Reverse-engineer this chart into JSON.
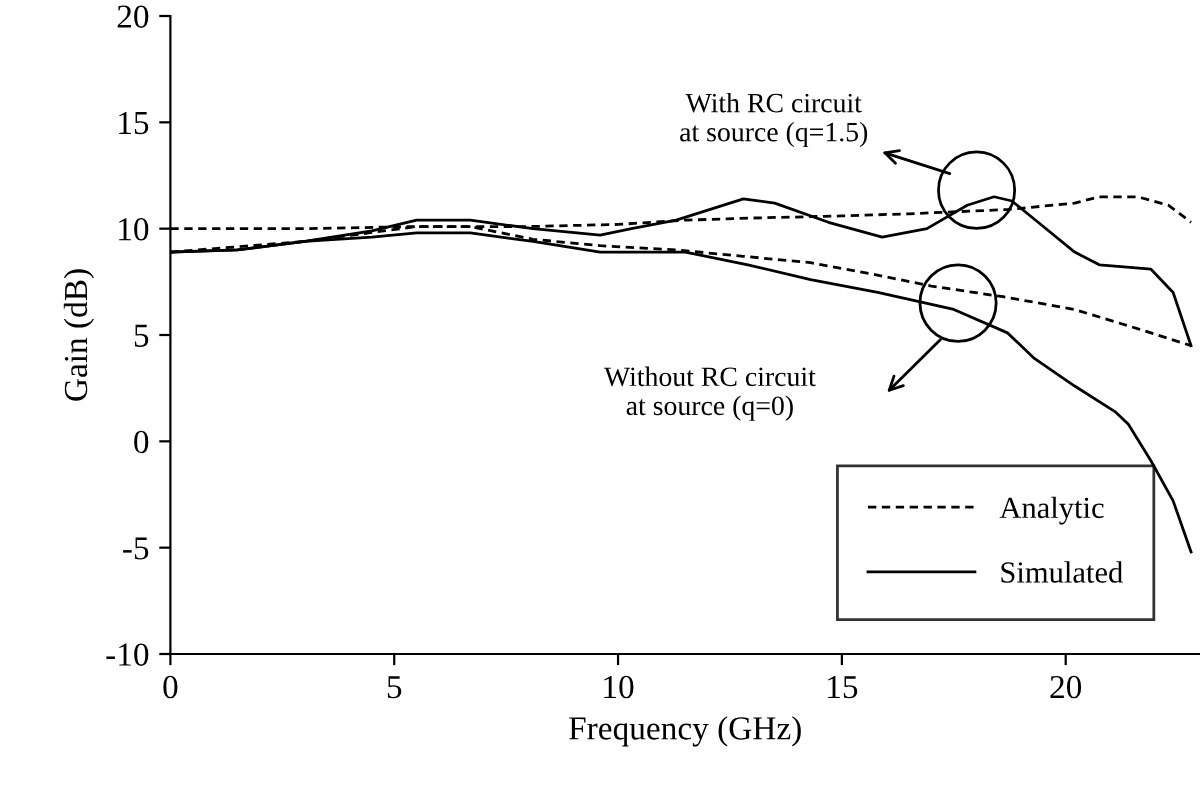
{
  "chart_data": {
    "type": "line",
    "xlabel": "Frequency (GHz)",
    "ylabel": "Gain (dB)",
    "xlim": [
      0,
      23
    ],
    "xticks": [
      0,
      5,
      10,
      15,
      20
    ],
    "ylim": [
      -10,
      20
    ],
    "yticks": [
      -10,
      -5,
      0,
      5,
      10,
      15,
      20
    ],
    "grid": false,
    "legend": "bottom right",
    "marker": "none",
    "series": [
      {
        "name": "Analytic",
        "color": "#000000",
        "line_style": "dashed",
        "x": [
          0,
          3,
          5.5,
          8,
          10,
          11.5,
          13,
          15,
          16.5,
          18.7,
          20.2,
          20.75,
          21.6,
          22.3,
          22.8
        ],
        "values": [
          10.0,
          10.0,
          10.1,
          10.1,
          10.2,
          10.4,
          10.5,
          10.6,
          10.7,
          10.9,
          11.2,
          11.5,
          11.5,
          11.1,
          10.3
        ]
      },
      {
        "name": "Simulated",
        "color": "#000000",
        "line_style": "solid",
        "x": [
          0,
          1.5,
          3,
          4.5,
          5.5,
          6.7,
          8.1,
          9.6,
          10.3,
          11.3,
          12.2,
          12.8,
          13.5,
          14.7,
          15.9,
          16.9,
          17.8,
          18.4,
          18.8,
          19.5,
          20.2,
          20.75,
          21.3,
          21.9,
          22.4,
          22.8
        ],
        "values": [
          8.9,
          9.0,
          9.4,
          9.9,
          10.4,
          10.4,
          10.0,
          9.7,
          10.0,
          10.4,
          11.0,
          11.4,
          11.2,
          10.3,
          9.6,
          10.0,
          11.1,
          11.5,
          11.3,
          10.1,
          8.9,
          8.3,
          8.2,
          8.1,
          7.0,
          4.5
        ]
      },
      {
        "color": "#000000",
        "line_style": "dashed",
        "x": [
          0,
          3,
          5.5,
          6.7,
          8.1,
          9.6,
          11.3,
          12.8,
          14.3,
          15.6,
          17.0,
          18.6,
          20.2,
          21.6,
          22.8
        ],
        "values": [
          8.9,
          9.4,
          10.1,
          10.1,
          9.5,
          9.2,
          9.0,
          8.7,
          8.4,
          7.9,
          7.3,
          6.8,
          6.2,
          5.3,
          4.5
        ]
      },
      {
        "color": "#000000",
        "line_style": "solid",
        "x": [
          0,
          1.5,
          3,
          4.5,
          5.5,
          6.7,
          8.1,
          9.6,
          11.5,
          12.9,
          14.3,
          15.8,
          17.5,
          18.7,
          19.3,
          20.2,
          21.1,
          21.4,
          21.9,
          22.4,
          22.8
        ],
        "values": [
          8.9,
          9.0,
          9.4,
          9.6,
          9.8,
          9.8,
          9.4,
          8.9,
          8.9,
          8.3,
          7.6,
          7.0,
          6.2,
          5.1,
          3.9,
          2.6,
          1.4,
          0.8,
          -0.9,
          -2.8,
          -5.2
        ]
      }
    ],
    "annotations": [
      "With RC circuit\nat source (q=1.5)",
      "Without RC circuit\nat source (q=0)"
    ]
  }
}
